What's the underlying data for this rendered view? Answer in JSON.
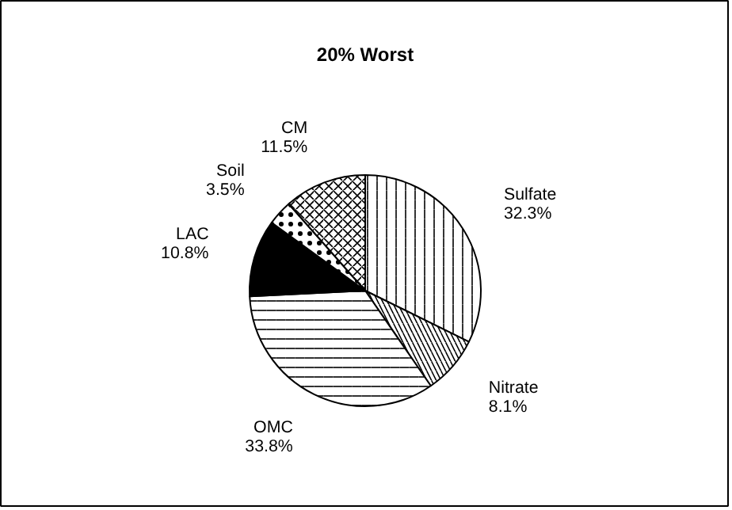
{
  "chart_data": {
    "type": "pie",
    "title": "20% Worst",
    "categories": [
      "Sulfate",
      "Nitrate",
      "OMC",
      "LAC",
      "Soil",
      "CM"
    ],
    "values": [
      32.3,
      8.1,
      33.8,
      10.8,
      3.5,
      11.5
    ],
    "colors": [
      "#ffffff",
      "#ffffff",
      "#ffffff",
      "#000000",
      "#ffffff",
      "#ffffff"
    ],
    "value_labels": [
      "32.3%",
      "8.1%",
      "33.8%",
      "10.8%",
      "3.5%",
      "11.5%"
    ]
  }
}
